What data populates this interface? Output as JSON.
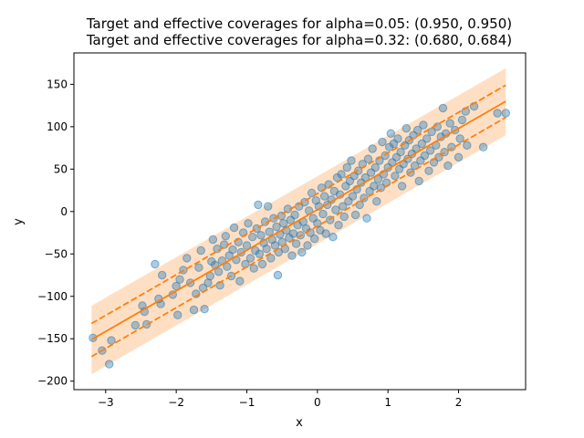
{
  "chart_data": {
    "type": "scatter",
    "title_lines": [
      "Target and effective coverages for alpha=0.05: (0.950, 0.950)",
      "Target and effective coverages for alpha=0.32: (0.680, 0.684)"
    ],
    "xlabel": "x",
    "ylabel": "y",
    "xlim": [
      -3.45,
      2.95
    ],
    "ylim": [
      -210,
      187
    ],
    "xticks": [
      -3,
      -2,
      -1,
      0,
      1,
      2
    ],
    "yticks": [
      -200,
      -150,
      -100,
      -50,
      0,
      50,
      100,
      150
    ],
    "colors": {
      "points": "#1f77b4",
      "line": "#ff7f0e",
      "band": "#ffdfc4"
    },
    "regression_line": {
      "x": [
        -3.2,
        2.67
      ],
      "y": [
        -151,
        130
      ]
    },
    "band_alpha_005": {
      "x": [
        -3.2,
        2.67
      ],
      "lower": [
        -192,
        90
      ],
      "upper": [
        -111,
        169
      ]
    },
    "band_alpha_032": {
      "x": [
        -3.2,
        2.67
      ],
      "lower": [
        -171,
        111
      ],
      "upper": [
        -132,
        149
      ]
    },
    "points": [
      [
        -3.18,
        -149
      ],
      [
        -3.05,
        -164
      ],
      [
        -2.95,
        -180
      ],
      [
        -2.92,
        -152
      ],
      [
        -2.58,
        -134
      ],
      [
        -2.48,
        -111
      ],
      [
        -2.45,
        -118
      ],
      [
        -2.42,
        -133
      ],
      [
        -2.3,
        -62
      ],
      [
        -2.25,
        -103
      ],
      [
        -2.22,
        -109
      ],
      [
        -2.2,
        -75
      ],
      [
        -2.05,
        -98
      ],
      [
        -2.0,
        -88
      ],
      [
        -1.98,
        -122
      ],
      [
        -1.95,
        -80
      ],
      [
        -1.9,
        -69
      ],
      [
        -1.85,
        -55
      ],
      [
        -1.8,
        -84
      ],
      [
        -1.75,
        -116
      ],
      [
        -1.72,
        -97
      ],
      [
        -1.68,
        -66
      ],
      [
        -1.65,
        -46
      ],
      [
        -1.62,
        -90
      ],
      [
        -1.6,
        -115
      ],
      [
        -1.55,
        -84
      ],
      [
        -1.52,
        -76
      ],
      [
        -1.5,
        -59
      ],
      [
        -1.48,
        -33
      ],
      [
        -1.45,
        -63
      ],
      [
        -1.42,
        -44
      ],
      [
        -1.4,
        -71
      ],
      [
        -1.38,
        -87
      ],
      [
        -1.35,
        -58
      ],
      [
        -1.32,
        -39
      ],
      [
        -1.3,
        -29
      ],
      [
        -1.28,
        -65
      ],
      [
        -1.25,
        -52
      ],
      [
        -1.22,
        -76
      ],
      [
        -1.2,
        -45
      ],
      [
        -1.18,
        -19
      ],
      [
        -1.15,
        -57
      ],
      [
        -1.12,
        -36
      ],
      [
        -1.1,
        -82
      ],
      [
        -1.08,
        -48
      ],
      [
        -1.05,
        -25
      ],
      [
        -1.02,
        -62
      ],
      [
        -1.0,
        -40
      ],
      [
        -0.98,
        -14
      ],
      [
        -0.95,
        -55
      ],
      [
        -0.92,
        -30
      ],
      [
        -0.9,
        -67
      ],
      [
        -0.88,
        -46
      ],
      [
        -0.86,
        -20
      ],
      [
        -0.84,
        8
      ],
      [
        -0.82,
        -50
      ],
      [
        -0.8,
        -28
      ],
      [
        -0.78,
        -62
      ],
      [
        -0.76,
        -37
      ],
      [
        -0.74,
        -12
      ],
      [
        -0.72,
        -44
      ],
      [
        -0.7,
        6
      ],
      [
        -0.68,
        -24
      ],
      [
        -0.66,
        -55
      ],
      [
        -0.64,
        -33
      ],
      [
        -0.62,
        -8
      ],
      [
        -0.6,
        -40
      ],
      [
        -0.58,
        -18
      ],
      [
        -0.56,
        -75
      ],
      [
        -0.55,
        -48
      ],
      [
        -0.53,
        -27
      ],
      [
        -0.51,
        -5
      ],
      [
        -0.5,
        -36
      ],
      [
        -0.48,
        -14
      ],
      [
        -0.46,
        -44
      ],
      [
        -0.44,
        -22
      ],
      [
        -0.42,
        3
      ],
      [
        -0.4,
        -31
      ],
      [
        -0.38,
        -10
      ],
      [
        -0.36,
        -52
      ],
      [
        -0.34,
        -26
      ],
      [
        -0.32,
        -4
      ],
      [
        -0.3,
        -38
      ],
      [
        -0.28,
        -16
      ],
      [
        -0.26,
        6
      ],
      [
        -0.24,
        -28
      ],
      [
        -0.22,
        -48
      ],
      [
        -0.2,
        -12
      ],
      [
        -0.18,
        11
      ],
      [
        -0.16,
        -20
      ],
      [
        -0.14,
        -40
      ],
      [
        -0.12,
        1
      ],
      [
        -0.1,
        -25
      ],
      [
        -0.08,
        22
      ],
      [
        -0.06,
        -8
      ],
      [
        -0.04,
        -32
      ],
      [
        -0.02,
        13
      ],
      [
        0.0,
        -14
      ],
      [
        0.02,
        6
      ],
      [
        0.04,
        -22
      ],
      [
        0.06,
        28
      ],
      [
        0.08,
        -3
      ],
      [
        0.1,
        18
      ],
      [
        0.12,
        -26
      ],
      [
        0.14,
        8
      ],
      [
        0.16,
        32
      ],
      [
        0.18,
        -10
      ],
      [
        0.2,
        14
      ],
      [
        0.22,
        -30
      ],
      [
        0.24,
        24
      ],
      [
        0.26,
        2
      ],
      [
        0.28,
        40
      ],
      [
        0.3,
        -16
      ],
      [
        0.32,
        20
      ],
      [
        0.34,
        44
      ],
      [
        0.36,
        6
      ],
      [
        0.38,
        -6
      ],
      [
        0.4,
        30
      ],
      [
        0.42,
        52
      ],
      [
        0.44,
        12
      ],
      [
        0.46,
        36
      ],
      [
        0.48,
        60
      ],
      [
        0.5,
        18
      ],
      [
        0.52,
        42
      ],
      [
        0.54,
        -4
      ],
      [
        0.56,
        26
      ],
      [
        0.58,
        48
      ],
      [
        0.6,
        8
      ],
      [
        0.62,
        34
      ],
      [
        0.64,
        56
      ],
      [
        0.66,
        16
      ],
      [
        0.68,
        40
      ],
      [
        0.7,
        -8
      ],
      [
        0.72,
        62
      ],
      [
        0.74,
        24
      ],
      [
        0.76,
        46
      ],
      [
        0.78,
        74
      ],
      [
        0.8,
        30
      ],
      [
        0.82,
        52
      ],
      [
        0.84,
        12
      ],
      [
        0.86,
        38
      ],
      [
        0.88,
        60
      ],
      [
        0.9,
        28
      ],
      [
        0.92,
        82
      ],
      [
        0.94,
        44
      ],
      [
        0.96,
        66
      ],
      [
        0.98,
        34
      ],
      [
        1.0,
        52
      ],
      [
        1.02,
        76
      ],
      [
        1.04,
        92
      ],
      [
        1.06,
        58
      ],
      [
        1.08,
        80
      ],
      [
        1.1,
        42
      ],
      [
        1.12,
        64
      ],
      [
        1.14,
        86
      ],
      [
        1.16,
        50
      ],
      [
        1.18,
        70
      ],
      [
        1.2,
        30
      ],
      [
        1.22,
        56
      ],
      [
        1.24,
        78
      ],
      [
        1.26,
        98
      ],
      [
        1.28,
        62
      ],
      [
        1.3,
        84
      ],
      [
        1.32,
        46
      ],
      [
        1.34,
        68
      ],
      [
        1.36,
        90
      ],
      [
        1.38,
        54
      ],
      [
        1.4,
        74
      ],
      [
        1.42,
        96
      ],
      [
        1.44,
        36
      ],
      [
        1.46,
        60
      ],
      [
        1.48,
        80
      ],
      [
        1.5,
        102
      ],
      [
        1.52,
        66
      ],
      [
        1.55,
        86
      ],
      [
        1.58,
        48
      ],
      [
        1.6,
        72
      ],
      [
        1.62,
        94
      ],
      [
        1.65,
        58
      ],
      [
        1.68,
        78
      ],
      [
        1.7,
        100
      ],
      [
        1.72,
        64
      ],
      [
        1.75,
        88
      ],
      [
        1.78,
        122
      ],
      [
        1.8,
        70
      ],
      [
        1.82,
        92
      ],
      [
        1.85,
        54
      ],
      [
        1.88,
        104
      ],
      [
        1.9,
        76
      ],
      [
        1.95,
        96
      ],
      [
        2.0,
        64
      ],
      [
        2.02,
        86
      ],
      [
        2.05,
        108
      ],
      [
        2.1,
        118
      ],
      [
        2.12,
        78
      ],
      [
        2.22,
        124
      ],
      [
        2.35,
        76
      ],
      [
        2.55,
        116
      ],
      [
        2.67,
        116
      ]
    ]
  }
}
